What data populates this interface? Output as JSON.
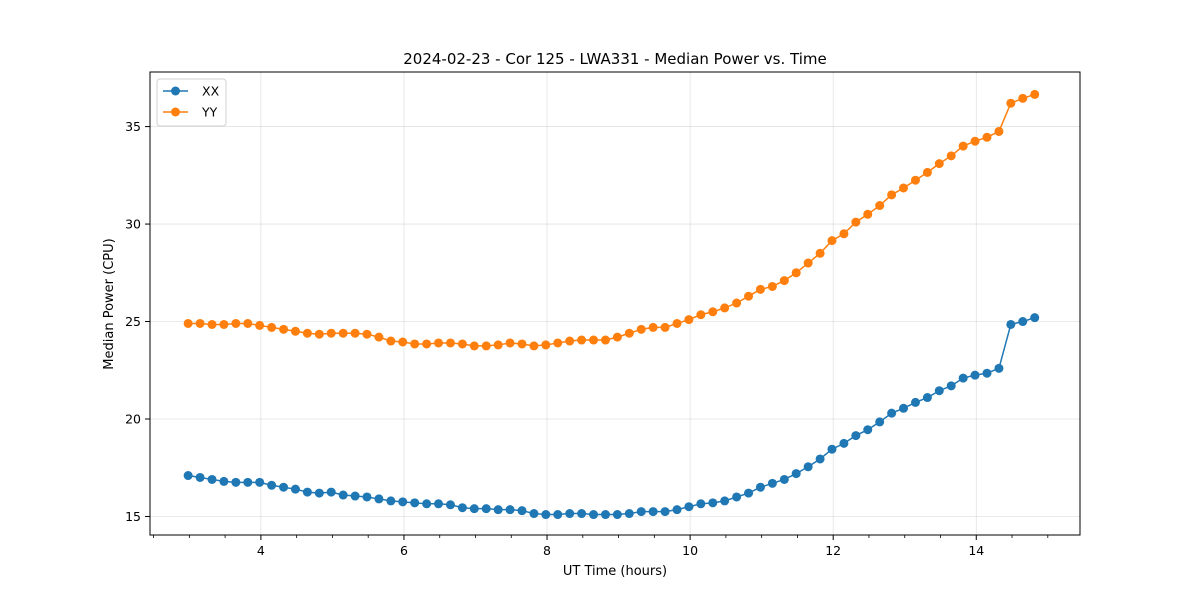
{
  "chart_data": {
    "type": "line",
    "title": "2024-02-23 - Cor 125 - LWA331 - Median Power vs. Time",
    "xlabel": "UT Time (hours)",
    "ylabel": "Median Power (CPU)",
    "xlim": [
      2.45,
      15.45
    ],
    "ylim": [
      14.05,
      37.8
    ],
    "xticks": [
      4,
      6,
      8,
      10,
      12,
      14
    ],
    "xtick_labels": [
      "4",
      "6",
      "8",
      "10",
      "12",
      "14"
    ],
    "yticks": [
      15,
      20,
      25,
      30,
      35
    ],
    "ytick_labels": [
      "15",
      "20",
      "25",
      "30",
      "35"
    ],
    "grid": true,
    "legend_position": "top-left",
    "x": [
      2.983,
      3.15,
      3.317,
      3.483,
      3.65,
      3.817,
      3.983,
      4.15,
      4.317,
      4.483,
      4.65,
      4.817,
      4.983,
      5.15,
      5.317,
      5.483,
      5.65,
      5.817,
      5.983,
      6.15,
      6.317,
      6.483,
      6.65,
      6.817,
      6.983,
      7.15,
      7.317,
      7.483,
      7.65,
      7.817,
      7.983,
      8.15,
      8.317,
      8.483,
      8.65,
      8.817,
      8.983,
      9.15,
      9.317,
      9.483,
      9.65,
      9.817,
      9.983,
      10.15,
      10.317,
      10.483,
      10.65,
      10.817,
      10.983,
      11.15,
      11.317,
      11.483,
      11.65,
      11.817,
      11.983,
      12.15,
      12.317,
      12.483,
      12.65,
      12.817,
      12.983,
      13.15,
      13.317,
      13.483,
      13.65,
      13.817,
      13.983,
      14.15,
      14.317,
      14.483,
      14.65,
      14.817
    ],
    "series": [
      {
        "name": "XX",
        "color": "#1f77b4",
        "values": [
          17.1,
          17.0,
          16.9,
          16.8,
          16.75,
          16.75,
          16.75,
          16.6,
          16.5,
          16.4,
          16.25,
          16.2,
          16.25,
          16.1,
          16.05,
          16.0,
          15.9,
          15.8,
          15.75,
          15.7,
          15.65,
          15.65,
          15.6,
          15.45,
          15.4,
          15.4,
          15.35,
          15.35,
          15.3,
          15.15,
          15.1,
          15.1,
          15.15,
          15.15,
          15.1,
          15.1,
          15.1,
          15.15,
          15.25,
          15.25,
          15.25,
          15.35,
          15.5,
          15.65,
          15.7,
          15.8,
          16.0,
          16.2,
          16.5,
          16.7,
          16.9,
          17.2,
          17.55,
          17.95,
          18.45,
          18.75,
          19.15,
          19.45,
          19.85,
          20.3,
          20.55,
          20.85,
          21.1,
          21.45,
          21.7,
          22.1,
          22.25,
          22.35,
          22.6,
          24.85,
          25.0,
          25.2
        ]
      },
      {
        "name": "YY",
        "color": "#ff7f0e",
        "values": [
          24.9,
          24.9,
          24.85,
          24.85,
          24.9,
          24.9,
          24.8,
          24.7,
          24.6,
          24.5,
          24.4,
          24.35,
          24.4,
          24.4,
          24.4,
          24.35,
          24.2,
          24.0,
          23.95,
          23.85,
          23.85,
          23.9,
          23.9,
          23.85,
          23.75,
          23.75,
          23.8,
          23.9,
          23.85,
          23.75,
          23.8,
          23.9,
          24.0,
          24.05,
          24.05,
          24.05,
          24.2,
          24.4,
          24.6,
          24.7,
          24.7,
          24.9,
          25.1,
          25.35,
          25.5,
          25.7,
          25.95,
          26.3,
          26.65,
          26.8,
          27.1,
          27.5,
          28.0,
          28.5,
          29.15,
          29.5,
          30.1,
          30.5,
          30.95,
          31.5,
          31.85,
          32.25,
          32.65,
          33.1,
          33.5,
          34.0,
          34.25,
          34.45,
          34.75,
          36.2,
          36.45,
          36.65
        ]
      }
    ]
  }
}
